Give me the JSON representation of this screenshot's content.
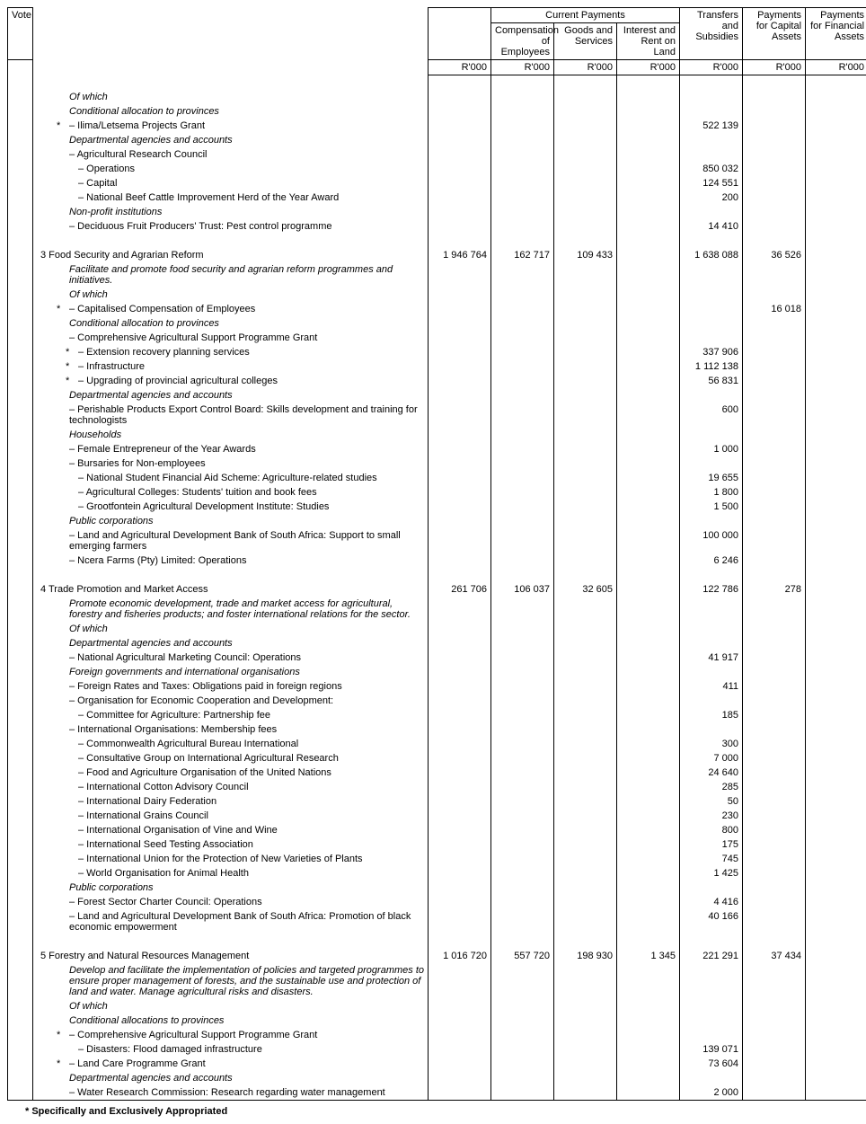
{
  "footnote": "* Specifically and Exclusively Appropriated",
  "headers": {
    "vote": "Vote",
    "current_payments": "Current Payments",
    "transfers": "Transfers and Subsidies",
    "cap_assets": "Payments for Capital Assets",
    "fin_assets": "Payments for Financial Assets",
    "comp": "Compensation of Employees",
    "goods": "Goods and Services",
    "interest": "Interest and Rent on Land",
    "unit": "R'000"
  },
  "rows": [
    {
      "t": "Of which",
      "cls": "i pad1"
    },
    {
      "t": "Conditional allocation to provinces",
      "cls": "i pad1"
    },
    {
      "t": "– Ilima/Letsema Projects Grant",
      "cls": "pad1",
      "ast": true,
      "v": {
        "tr": "522 139"
      }
    },
    {
      "t": "Departmental agencies and accounts",
      "cls": "i pad1"
    },
    {
      "t": "– Agricultural Research Council",
      "cls": "pad1"
    },
    {
      "t": "– Operations",
      "cls": "pad2",
      "v": {
        "tr": "850 032"
      }
    },
    {
      "t": "– Capital",
      "cls": "pad2",
      "v": {
        "tr": "124 551"
      }
    },
    {
      "t": "– National Beef Cattle Improvement Herd of the Year Award",
      "cls": "pad2",
      "v": {
        "tr": "200"
      }
    },
    {
      "t": "Non-profit institutions",
      "cls": "i pad1"
    },
    {
      "t": "– Deciduous Fruit Producers' Trust: Pest control programme",
      "cls": "pad1",
      "v": {
        "tr": "14 410"
      }
    },
    {
      "t": "",
      "cls": "pad1",
      "spacer": true
    },
    {
      "t": "3 Food Security and Agrarian Reform",
      "cls": "pad0",
      "v": {
        "total": "1 946 764",
        "comp": "162 717",
        "goods": "109 433",
        "tr": "1 638 088",
        "cap": "36 526"
      }
    },
    {
      "t": "Facilitate and promote food security and agrarian reform programmes and initiatives.",
      "cls": "i pad1"
    },
    {
      "t": "Of which",
      "cls": "i pad1"
    },
    {
      "t": "– Capitalised Compensation of Employees",
      "cls": "pad1",
      "ast": true,
      "v": {
        "cap": "16 018"
      }
    },
    {
      "t": "Conditional allocation to provinces",
      "cls": "i pad1"
    },
    {
      "t": "– Comprehensive Agricultural Support Programme Grant",
      "cls": "pad1"
    },
    {
      "t": "– Extension recovery planning services",
      "cls": "pad2",
      "ast": true,
      "v": {
        "tr": "337 906"
      }
    },
    {
      "t": "– Infrastructure",
      "cls": "pad2",
      "ast": true,
      "v": {
        "tr": "1 112 138"
      }
    },
    {
      "t": "– Upgrading of provincial agricultural colleges",
      "cls": "pad2",
      "ast": true,
      "v": {
        "tr": "56 831"
      }
    },
    {
      "t": "Departmental agencies and accounts",
      "cls": "i pad1"
    },
    {
      "t": "– Perishable Products Export Control Board: Skills development and training for technologists",
      "cls": "pad1",
      "v": {
        "tr": "600"
      }
    },
    {
      "t": "Households",
      "cls": "i pad1"
    },
    {
      "t": "– Female Entrepreneur of the Year Awards",
      "cls": "pad1",
      "v": {
        "tr": "1 000"
      }
    },
    {
      "t": "– Bursaries for Non-employees",
      "cls": "pad1"
    },
    {
      "t": "– National Student Financial Aid Scheme: Agriculture-related studies",
      "cls": "pad2",
      "v": {
        "tr": "19 655"
      }
    },
    {
      "t": "– Agricultural Colleges: Students' tuition and book fees",
      "cls": "pad2",
      "v": {
        "tr": "1 800"
      }
    },
    {
      "t": "– Grootfontein Agricultural Development Institute: Studies",
      "cls": "pad2",
      "v": {
        "tr": "1 500"
      }
    },
    {
      "t": "Public corporations",
      "cls": "i pad1"
    },
    {
      "t": "– Land and Agricultural Development Bank of South Africa: Support to small emerging farmers",
      "cls": "pad1",
      "v": {
        "tr": "100 000"
      }
    },
    {
      "t": "– Ncera Farms (Pty) Limited: Operations",
      "cls": "pad1",
      "v": {
        "tr": "6 246"
      }
    },
    {
      "t": "",
      "cls": "pad1",
      "spacer": true
    },
    {
      "t": "4 Trade Promotion and Market Access",
      "cls": "pad0",
      "v": {
        "total": "261 706",
        "comp": "106 037",
        "goods": "32 605",
        "tr": "122 786",
        "cap": "278"
      }
    },
    {
      "t": "Promote economic development, trade and market access for agricultural, forestry and fisheries products; and foster international relations for the sector.",
      "cls": "i pad1"
    },
    {
      "t": "Of which",
      "cls": "i pad1"
    },
    {
      "t": "Departmental agencies and accounts",
      "cls": "i pad1"
    },
    {
      "t": "– National Agricultural Marketing Council: Operations",
      "cls": "pad1",
      "v": {
        "tr": "41 917"
      }
    },
    {
      "t": "Foreign governments and international organisations",
      "cls": "i pad1"
    },
    {
      "t": "– Foreign Rates and Taxes: Obligations paid in foreign regions",
      "cls": "pad1",
      "v": {
        "tr": "411"
      }
    },
    {
      "t": "– Organisation for Economic Cooperation and Development:",
      "cls": "pad1"
    },
    {
      "t": "– Committee for Agriculture: Partnership fee",
      "cls": "pad2",
      "v": {
        "tr": "185"
      }
    },
    {
      "t": "– International Organisations: Membership fees",
      "cls": "pad1"
    },
    {
      "t": "– Commonwealth Agricultural Bureau International",
      "cls": "pad2",
      "v": {
        "tr": "300"
      }
    },
    {
      "t": "– Consultative Group on International Agricultural Research",
      "cls": "pad2",
      "v": {
        "tr": "7 000"
      }
    },
    {
      "t": "– Food and Agriculture Organisation of the United Nations",
      "cls": "pad2",
      "v": {
        "tr": "24 640"
      }
    },
    {
      "t": "– International Cotton Advisory Council",
      "cls": "pad2",
      "v": {
        "tr": "285"
      }
    },
    {
      "t": "– International Dairy Federation",
      "cls": "pad2",
      "v": {
        "tr": "50"
      }
    },
    {
      "t": "– International Grains Council",
      "cls": "pad2",
      "v": {
        "tr": "230"
      }
    },
    {
      "t": "– International Organisation of Vine and Wine",
      "cls": "pad2",
      "v": {
        "tr": "800"
      }
    },
    {
      "t": "– International Seed Testing Association",
      "cls": "pad2",
      "v": {
        "tr": "175"
      }
    },
    {
      "t": "– International Union for the Protection of New Varieties of Plants",
      "cls": "pad2",
      "v": {
        "tr": "745"
      }
    },
    {
      "t": "– World Organisation for Animal Health",
      "cls": "pad2",
      "v": {
        "tr": "1 425"
      }
    },
    {
      "t": "Public corporations",
      "cls": "i pad1"
    },
    {
      "t": "– Forest Sector Charter Council: Operations",
      "cls": "pad1",
      "v": {
        "tr": "4 416"
      }
    },
    {
      "t": "– Land and Agricultural Development Bank of South Africa: Promotion of black economic empowerment",
      "cls": "pad1",
      "v": {
        "tr": "40 166"
      }
    },
    {
      "t": "",
      "cls": "pad1",
      "spacer": true
    },
    {
      "t": "5 Forestry and Natural Resources Management",
      "cls": "pad0",
      "v": {
        "total": "1 016 720",
        "comp": "557 720",
        "goods": "198 930",
        "int": "1 345",
        "tr": "221 291",
        "cap": "37 434"
      }
    },
    {
      "t": "Develop and facilitate the implementation of policies and targeted programmes to ensure proper management of forests, and the sustainable use and protection of land and water. Manage agricultural risks and disasters.",
      "cls": "i pad1"
    },
    {
      "t": "Of which",
      "cls": "i pad1"
    },
    {
      "t": "Conditional allocations to provinces",
      "cls": "i pad1"
    },
    {
      "t": "– Comprehensive Agricultural Support Programme Grant",
      "cls": "pad1",
      "ast": true
    },
    {
      "t": "– Disasters: Flood damaged infrastructure",
      "cls": "pad2",
      "v": {
        "tr": "139 071"
      }
    },
    {
      "t": "– Land Care Programme Grant",
      "cls": "pad1",
      "ast": true,
      "v": {
        "tr": "73 604"
      }
    },
    {
      "t": "Departmental agencies and accounts",
      "cls": "i pad1"
    },
    {
      "t": "– Water Research Commission: Research regarding water management",
      "cls": "pad1",
      "v": {
        "tr": "2 000"
      }
    }
  ]
}
